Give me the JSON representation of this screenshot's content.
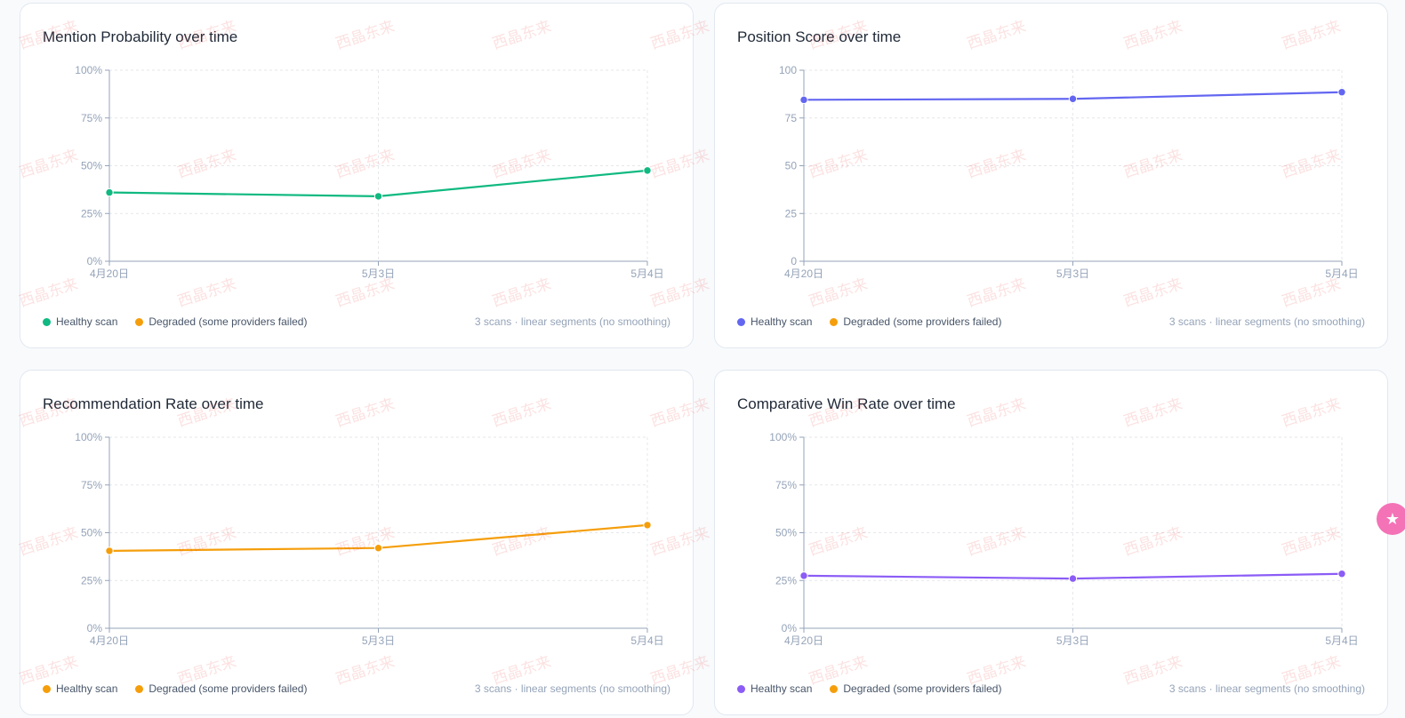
{
  "legend": {
    "healthy": "Healthy scan",
    "degraded": "Degraded (some providers failed)",
    "degraded_color": "#f59e0b"
  },
  "footnote": "3 scans · linear segments (no smoothing)",
  "watermark_text": "西晶东来",
  "side_button_icon": "star-badge-icon",
  "chart_data": [
    {
      "type": "line",
      "title": "Mention Probability over time",
      "color": "#10b981",
      "x": [
        "4月20日",
        "5月3日",
        "5月4日"
      ],
      "values": [
        36,
        34,
        47.5
      ],
      "ylim": [
        0,
        100
      ],
      "yticks": [
        "0%",
        "25%",
        "50%",
        "75%",
        "100%"
      ],
      "grid": true
    },
    {
      "type": "line",
      "title": "Position Score over time",
      "color": "#6366f1",
      "x": [
        "4月20日",
        "5月3日",
        "5月4日"
      ],
      "values": [
        84.5,
        85,
        88.5
      ],
      "ylim": [
        0,
        100
      ],
      "yticks": [
        "0",
        "25",
        "50",
        "75",
        "100"
      ],
      "grid": true
    },
    {
      "type": "line",
      "title": "Recommendation Rate over time",
      "color": "#f59e0b",
      "x": [
        "4月20日",
        "5月3日",
        "5月4日"
      ],
      "values": [
        40.5,
        42,
        54
      ],
      "ylim": [
        0,
        100
      ],
      "yticks": [
        "0%",
        "25%",
        "50%",
        "75%",
        "100%"
      ],
      "grid": true
    },
    {
      "type": "line",
      "title": "Comparative Win Rate over time",
      "color": "#8b5cf6",
      "x": [
        "4月20日",
        "5月3日",
        "5月4日"
      ],
      "values": [
        27.5,
        26,
        28.5
      ],
      "ylim": [
        0,
        100
      ],
      "yticks": [
        "0%",
        "25%",
        "50%",
        "75%",
        "100%"
      ],
      "grid": true
    }
  ]
}
